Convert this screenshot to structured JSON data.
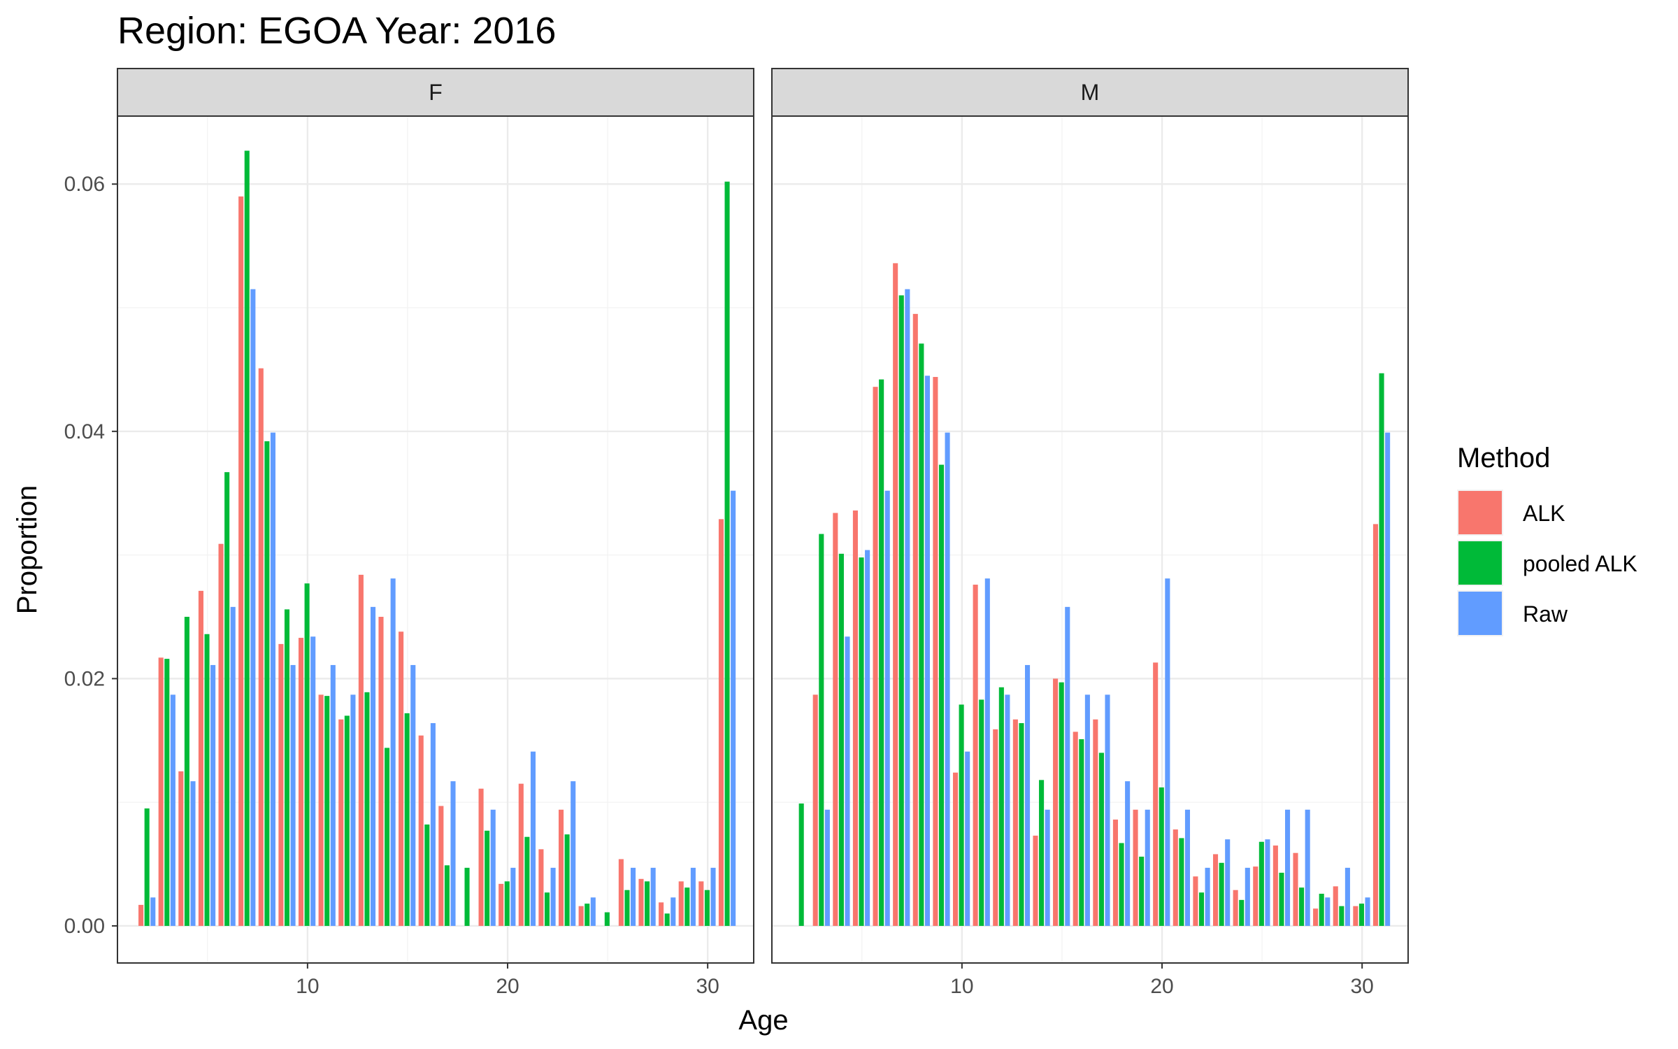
{
  "chart_data": {
    "type": "bar",
    "title": "Region: EGOA Year: 2016",
    "xlabel": "Age",
    "ylabel": "Proportion",
    "xlim": [
      0.5,
      32.3
    ],
    "ylim": [
      -0.003,
      0.0655
    ],
    "x_ticks": [
      10,
      20,
      30
    ],
    "y_ticks": [
      0.0,
      0.02,
      0.04,
      0.06
    ],
    "y_tick_labels": [
      "0.00",
      "0.02",
      "0.04",
      "0.06"
    ],
    "grid": true,
    "legend": {
      "title": "Method",
      "position": "right",
      "entries": [
        "ALK",
        "pooled ALK",
        "Raw"
      ]
    },
    "colors": {
      "ALK": "#F8766D",
      "pooled ALK": "#00BA38",
      "Raw": "#619CFF"
    },
    "ages": [
      2,
      3,
      4,
      5,
      6,
      7,
      8,
      9,
      10,
      11,
      12,
      13,
      14,
      15,
      16,
      17,
      18,
      19,
      20,
      21,
      22,
      23,
      24,
      25,
      26,
      27,
      28,
      29,
      30,
      31
    ],
    "panels": [
      {
        "label": "F",
        "series": [
          {
            "name": "ALK",
            "values": [
              0.0017,
              0.0217,
              0.0125,
              0.0271,
              0.0309,
              0.059,
              0.0451,
              0.0228,
              0.0233,
              0.0187,
              0.0167,
              0.0284,
              0.025,
              0.0238,
              0.0154,
              0.0097,
              null,
              0.0111,
              0.0034,
              0.0115,
              0.0062,
              0.0094,
              0.0016,
              null,
              0.0054,
              0.0038,
              0.0019,
              0.0036,
              0.0036,
              0.0329
            ]
          },
          {
            "name": "pooled ALK",
            "values": [
              0.0095,
              0.0216,
              0.025,
              0.0236,
              0.0367,
              0.0627,
              0.0392,
              0.0256,
              0.0277,
              0.0186,
              0.017,
              0.0189,
              0.0144,
              0.0172,
              0.0082,
              0.0049,
              0.0047,
              0.0077,
              0.0036,
              0.0072,
              0.0027,
              0.0074,
              0.0018,
              0.0011,
              0.0029,
              0.0036,
              0.001,
              0.0031,
              0.0029,
              0.0602
            ]
          },
          {
            "name": "Raw",
            "values": [
              0.0023,
              0.0187,
              0.0117,
              0.0211,
              0.0258,
              0.0515,
              0.0399,
              0.0211,
              0.0234,
              0.0211,
              0.0187,
              0.0258,
              0.0281,
              0.0211,
              0.0164,
              0.0117,
              null,
              0.0094,
              0.0047,
              0.0141,
              0.0047,
              0.0117,
              0.0023,
              null,
              0.0047,
              0.0047,
              0.0023,
              0.0047,
              0.0047,
              0.0352
            ]
          }
        ]
      },
      {
        "label": "M",
        "series": [
          {
            "name": "ALK",
            "values": [
              null,
              0.0187,
              0.0334,
              0.0336,
              0.0436,
              0.0536,
              0.0495,
              0.0444,
              0.0124,
              0.0276,
              0.0159,
              0.0167,
              0.0073,
              0.02,
              0.0157,
              0.0167,
              0.0086,
              0.0094,
              0.0213,
              0.0078,
              0.004,
              0.0058,
              0.0029,
              0.0048,
              0.0065,
              0.0059,
              0.0014,
              0.0032,
              0.0016,
              0.0325
            ]
          },
          {
            "name": "pooled ALK",
            "values": [
              0.0099,
              0.0317,
              0.0301,
              0.0298,
              0.0442,
              0.051,
              0.0471,
              0.0373,
              0.0179,
              0.0183,
              0.0193,
              0.0164,
              0.0118,
              0.0197,
              0.0151,
              0.014,
              0.0067,
              0.0056,
              0.0112,
              0.0071,
              0.0027,
              0.0051,
              0.0021,
              0.0068,
              0.0043,
              0.0031,
              0.0026,
              0.0016,
              0.0018,
              0.0447
            ]
          },
          {
            "name": "Raw",
            "values": [
              null,
              0.0094,
              0.0234,
              0.0304,
              0.0352,
              0.0515,
              0.0445,
              0.0399,
              0.0141,
              0.0281,
              0.0187,
              0.0211,
              0.0094,
              0.0258,
              0.0187,
              0.0187,
              0.0117,
              0.0094,
              0.0281,
              0.0094,
              0.0047,
              0.007,
              0.0047,
              0.007,
              0.0094,
              0.0094,
              0.0023,
              0.0047,
              0.0023,
              0.0399
            ]
          }
        ]
      }
    ]
  }
}
